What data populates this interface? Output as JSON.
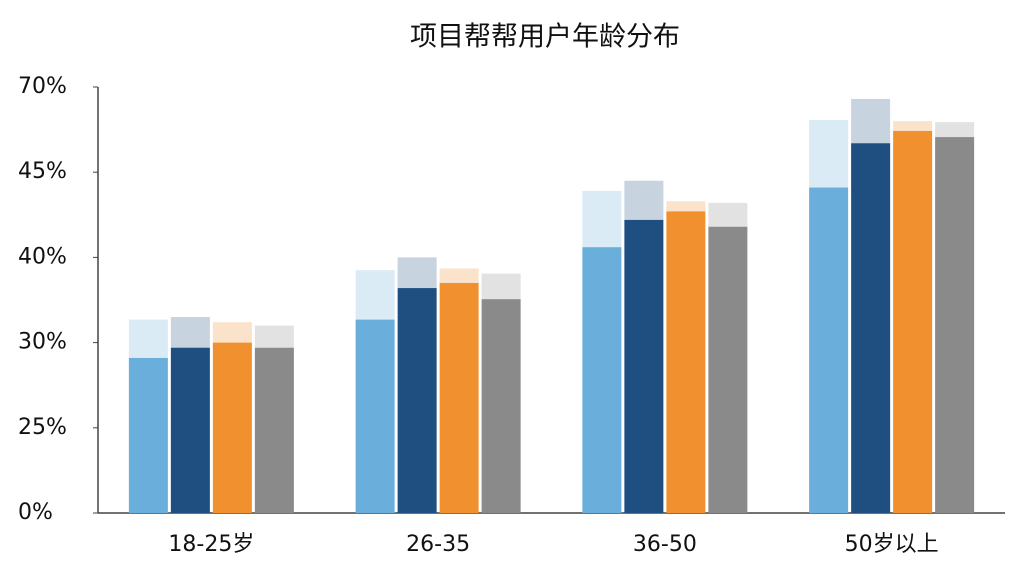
{
  "chart_data": {
    "type": "bar",
    "title": "项目帮帮用户年龄分布",
    "categories": [
      "18-25岁",
      "26-35",
      "36-50",
      "50岁以上"
    ],
    "series": [
      {
        "color": "#6aaedb",
        "values": [
          29.1,
          32.7,
          40.6,
          44.1
        ],
        "upper": [
          32.7,
          38.5,
          43.9,
          60.3
        ]
      },
      {
        "color": "#1f4e80",
        "values": [
          29.7,
          36.4,
          42.2,
          53.5
        ],
        "upper": [
          33.0,
          40.0,
          44.5,
          66.5
        ]
      },
      {
        "color": "#f0902f",
        "values": [
          30.0,
          37.0,
          42.7,
          57.1
        ],
        "upper": [
          32.4,
          38.7,
          43.3,
          60.0
        ]
      },
      {
        "color": "#8a8a8a",
        "values": [
          29.7,
          35.1,
          41.8,
          55.3
        ],
        "upper": [
          32.0,
          38.1,
          43.2,
          59.7
        ]
      }
    ],
    "ylim": [
      0,
      70
    ],
    "yticks": [
      {
        "value": 0,
        "label": "0%"
      },
      {
        "value": 25,
        "label": "25%"
      },
      {
        "value": 30,
        "label": "30%"
      },
      {
        "value": 40,
        "label": "40%"
      },
      {
        "value": 45,
        "label": "45%"
      },
      {
        "value": 70,
        "label": "70%"
      }
    ]
  }
}
